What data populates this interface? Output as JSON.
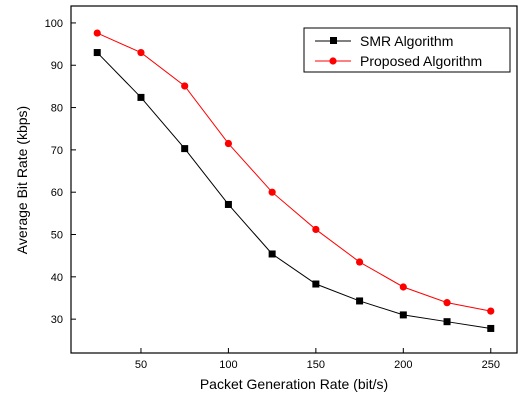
{
  "chart_data": {
    "type": "line",
    "title": "",
    "xlabel": "Packet Generation Rate (bit/s)",
    "ylabel": "Average Bit Rate (kbps)",
    "xlim": [
      10,
      265
    ],
    "ylim": [
      22,
      104
    ],
    "x_ticks": [
      50,
      100,
      150,
      200,
      250
    ],
    "y_ticks": [
      30,
      40,
      50,
      60,
      70,
      80,
      90,
      100
    ],
    "grid": false,
    "legend_position": "top-right",
    "x": [
      25,
      50,
      75,
      100,
      125,
      150,
      175,
      200,
      225,
      250
    ],
    "series": [
      {
        "name": "SMR Algorithm",
        "color": "#000000",
        "marker": "square",
        "values": [
          93.0,
          82.4,
          70.3,
          57.1,
          45.4,
          38.3,
          34.3,
          31.0,
          29.4,
          27.8
        ]
      },
      {
        "name": "Proposed Algorithm",
        "color": "#ff0000",
        "marker": "circle",
        "values": [
          97.6,
          93.0,
          85.1,
          71.5,
          60.0,
          51.2,
          43.5,
          37.6,
          33.9,
          31.9
        ]
      }
    ]
  }
}
